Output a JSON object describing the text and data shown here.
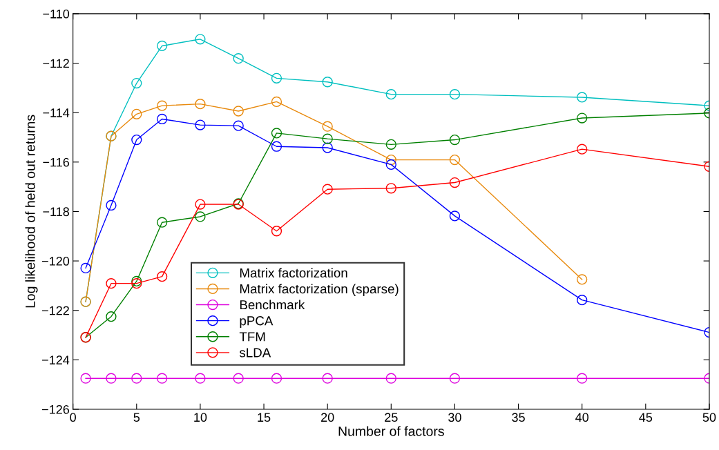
{
  "chart_data": {
    "type": "line",
    "xlabel": "Number of factors",
    "ylabel": "Log likelihood of held out returns",
    "x": [
      1,
      3,
      5,
      7,
      10,
      13,
      16,
      20,
      25,
      30,
      40,
      50
    ],
    "xlim": [
      0,
      50
    ],
    "xticks": [
      0,
      5,
      10,
      15,
      20,
      25,
      30,
      35,
      40,
      45,
      50
    ],
    "ylim": [
      -126,
      -110
    ],
    "yticks": [
      {
        "value": -126,
        "label": "−126"
      },
      {
        "value": -124,
        "label": "−124"
      },
      {
        "value": -122,
        "label": "−122"
      },
      {
        "value": -120,
        "label": "−120"
      },
      {
        "value": -118,
        "label": "−118"
      },
      {
        "value": -116,
        "label": "−116"
      },
      {
        "value": -114,
        "label": "−114"
      },
      {
        "value": -112,
        "label": "−112"
      },
      {
        "value": -110,
        "label": "−110"
      }
    ],
    "marker": "circle",
    "line_style": "solid",
    "grid": false,
    "legend": "lower left",
    "series": [
      {
        "name": "Matrix factorization",
        "color": "#00bfbf",
        "values": [
          -121.65,
          -114.95,
          -112.81,
          -111.3,
          -111.03,
          -111.81,
          -112.61,
          -112.76,
          -113.26,
          -113.26,
          -113.38,
          -113.72
        ]
      },
      {
        "name": "Matrix factorization (sparse)",
        "color": "#e8890c",
        "values": [
          -121.65,
          -114.95,
          -114.06,
          -113.72,
          -113.65,
          -113.94,
          -113.56,
          -114.56,
          -115.91,
          -115.91,
          -120.75,
          null
        ]
      },
      {
        "name": "Benchmark",
        "color": "#dd00dd",
        "values": [
          -124.75,
          -124.75,
          -124.75,
          -124.75,
          -124.75,
          -124.75,
          -124.75,
          -124.75,
          -124.75,
          -124.75,
          -124.75,
          -124.75
        ]
      },
      {
        "name": "pPCA",
        "color": "#0000ff",
        "values": [
          -120.29,
          -117.75,
          -115.1,
          -114.26,
          -114.5,
          -114.53,
          -115.37,
          -115.42,
          -116.1,
          -118.18,
          -121.58,
          -122.89
        ]
      },
      {
        "name": "TFM",
        "color": "#008000",
        "values": [
          -123.09,
          -122.25,
          -120.82,
          -118.44,
          -118.21,
          -117.68,
          -114.83,
          -115.06,
          -115.29,
          -115.1,
          -114.22,
          -114.02
        ]
      },
      {
        "name": "sLDA",
        "color": "#ff0000",
        "values": [
          -123.09,
          -120.91,
          -120.91,
          -120.63,
          -117.71,
          -117.71,
          -118.79,
          -117.1,
          -117.06,
          -116.83,
          -115.48,
          -116.18
        ]
      }
    ]
  }
}
